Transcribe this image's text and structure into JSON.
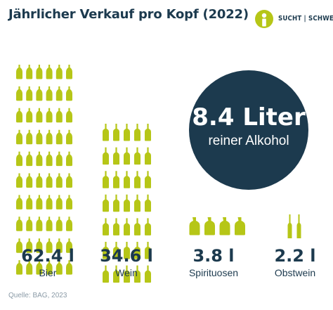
{
  "header": {
    "title": "Jährlicher Verkauf pro Kopf (2022)"
  },
  "logo": {
    "text": "SUCHT | SCHWEIZ",
    "icon": "sucht-schweiz-logo-icon"
  },
  "callout": {
    "value": "8.4 Liter",
    "label": "reiner Alkohol"
  },
  "colors": {
    "bottle": "#b6c617",
    "navy": "#1c3a4e",
    "muted": "#8a9aa6"
  },
  "chart_data": {
    "type": "pictogram",
    "unit": "l",
    "categories": [
      "Bier",
      "Wein",
      "Spirituosen",
      "Obstwein"
    ],
    "values": [
      62.4,
      34.6,
      3.8,
      2.2
    ],
    "value_labels": [
      "62.4 l",
      "34.6 l",
      "3.8 l",
      "2.2 l"
    ],
    "icons": [
      "beer-bottle-icon",
      "wine-bottle-icon",
      "spirits-bottle-icon",
      "fruit-wine-bottle-icon"
    ],
    "icon_counts": [
      60,
      35,
      4,
      2
    ]
  },
  "footer": {
    "source": "Quelle: BAG, 2023"
  }
}
